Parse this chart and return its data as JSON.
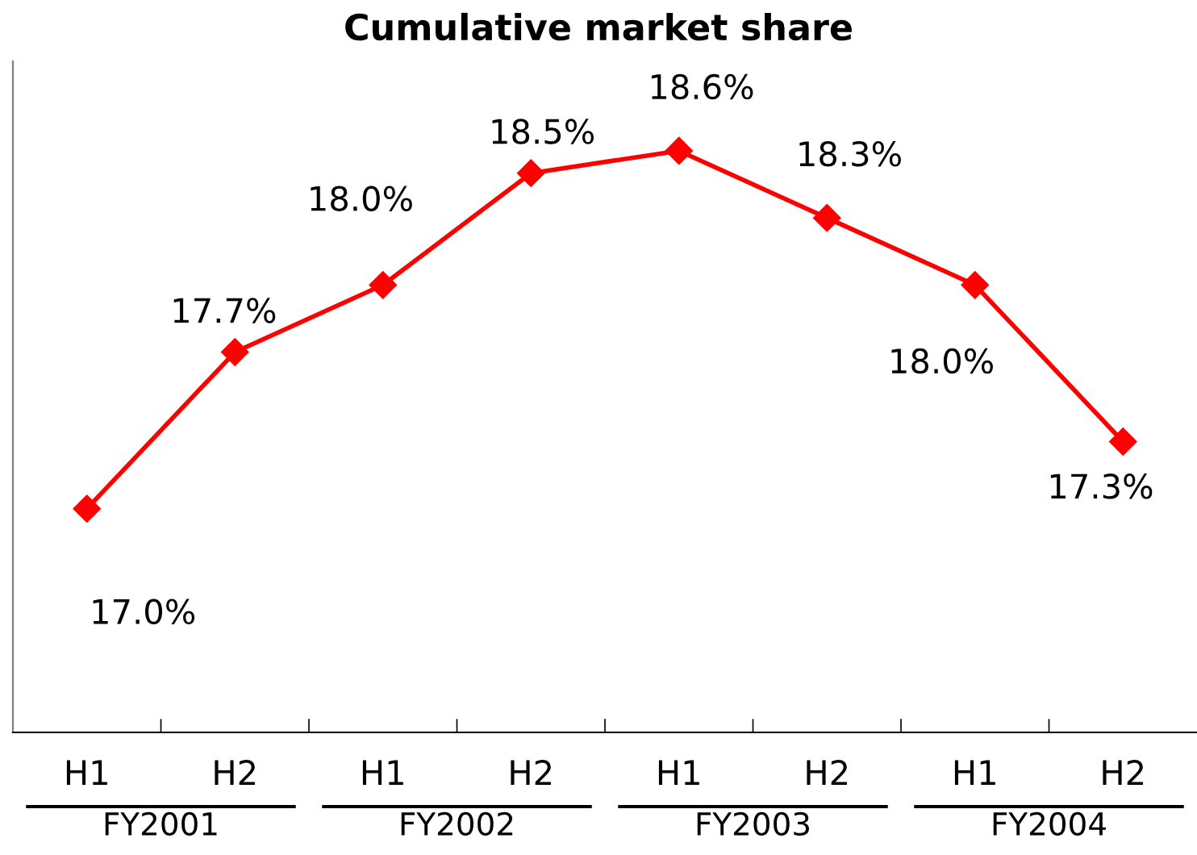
{
  "chart_data": {
    "type": "line",
    "title": "Cumulative market share",
    "categories": [
      "H1",
      "H2",
      "H1",
      "H2",
      "H1",
      "H2",
      "H1",
      "H2"
    ],
    "series": [
      {
        "color": "#ff0000",
        "values": [
          17.0,
          17.7,
          18.0,
          18.5,
          18.6,
          18.3,
          18.0,
          17.3
        ],
        "value_labels": [
          "17.0%",
          "17.7%",
          "18.0%",
          "18.5%",
          "18.6%",
          "18.3%",
          "18.0%",
          "17.3%"
        ]
      }
    ],
    "ylim": [
      16.0,
      19.0
    ],
    "tick_labels": "x",
    "marker": "diamond",
    "line_style": "solid",
    "grid": false,
    "legend": false,
    "annotations": [
      "FY2001",
      "FY2002",
      "FY2003",
      "FY2004"
    ]
  }
}
